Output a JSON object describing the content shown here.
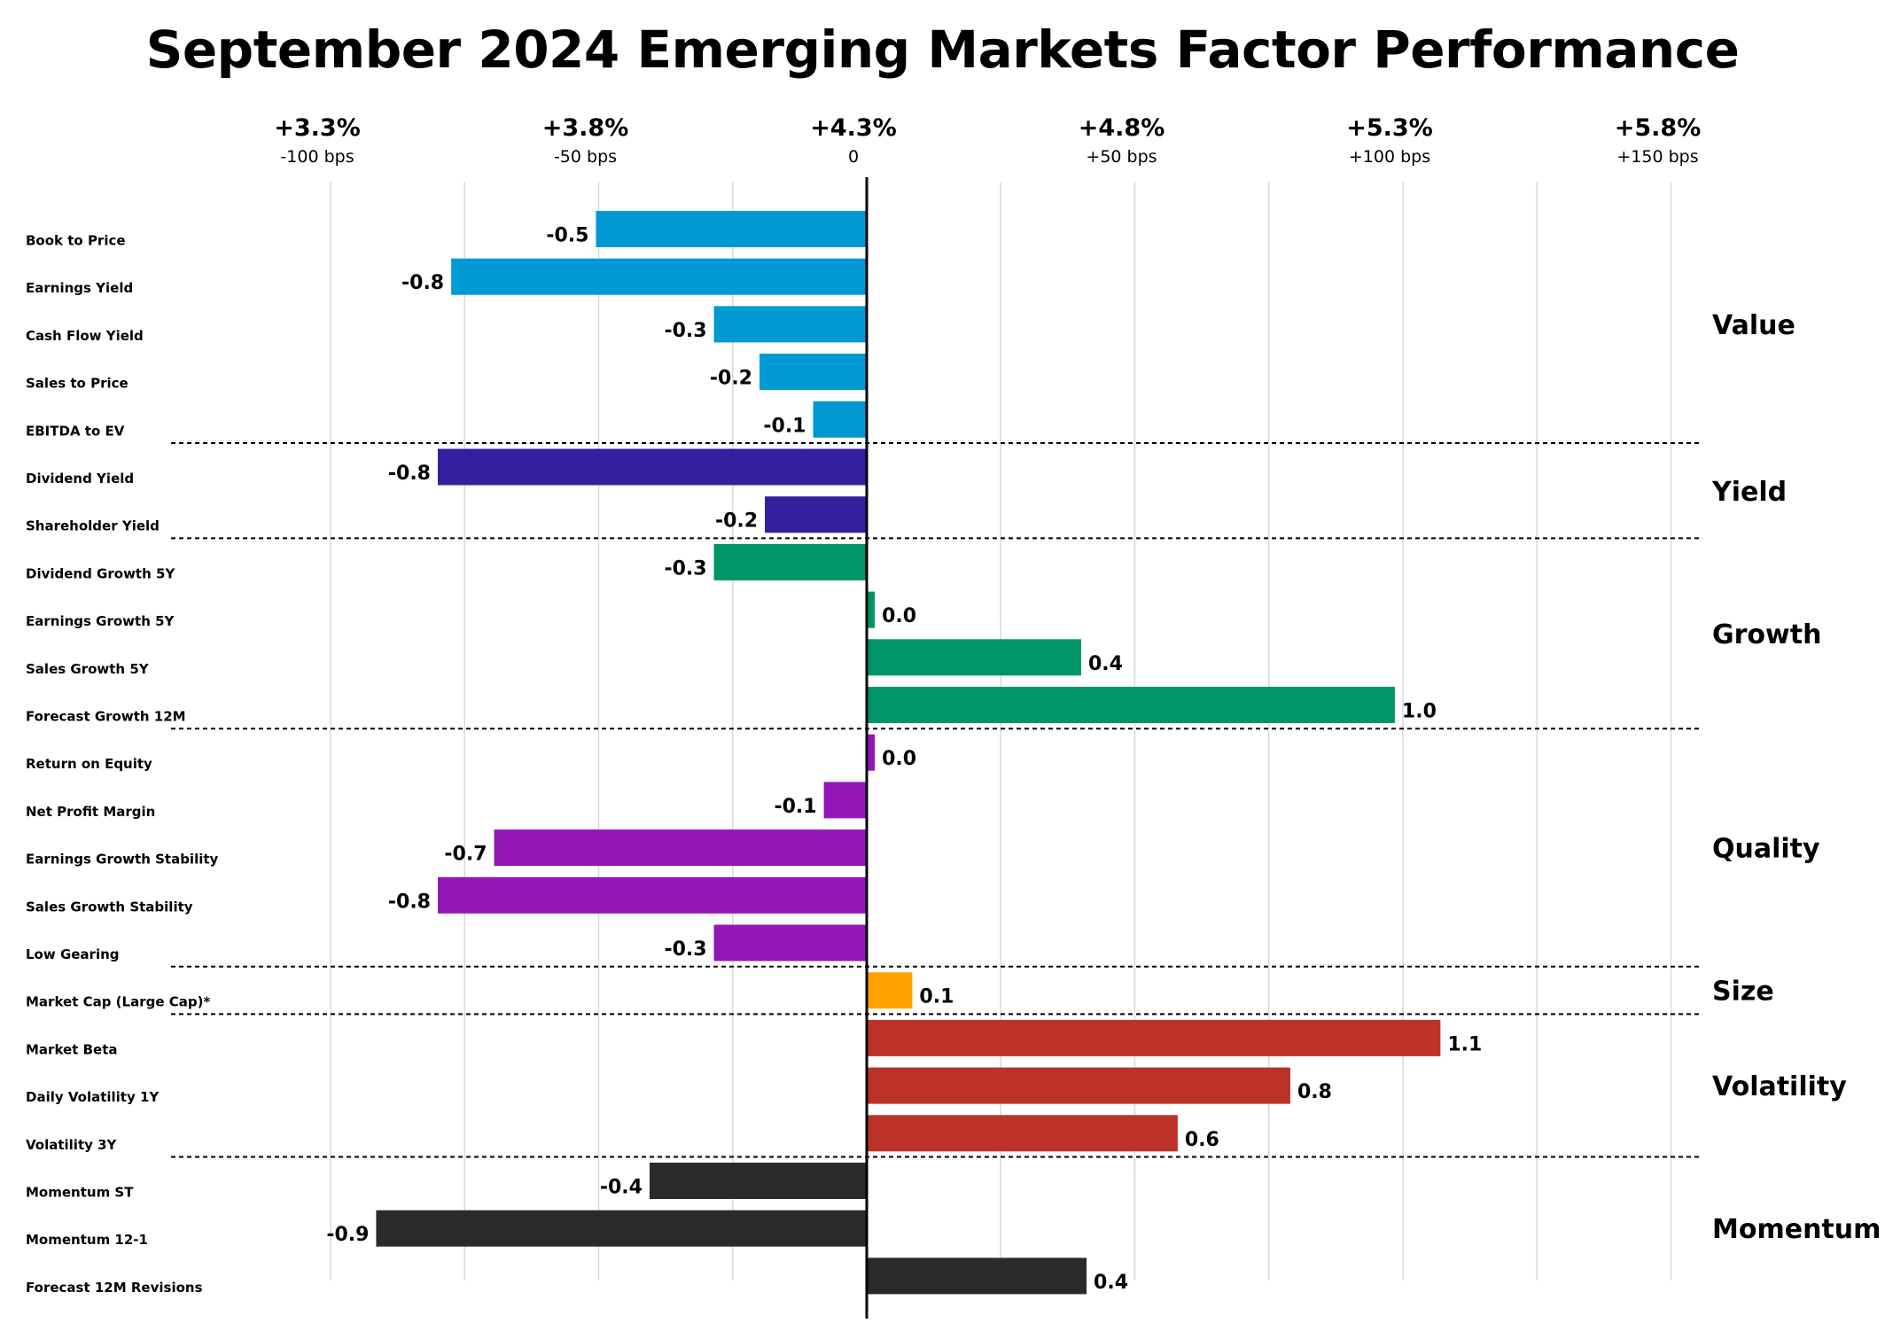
{
  "chart_data": {
    "type": "bar",
    "orientation": "horizontal",
    "title": "September 2024 Emerging Markets Factor Performance",
    "units": "bps x 100 (relative)",
    "xlim": [
      -1.25,
      1.5
    ],
    "ticks": [
      {
        "value": -1.0,
        "main": "+3.3%",
        "sub": "-100 bps"
      },
      {
        "value": -0.5,
        "main": "+3.8%",
        "sub": "-50 bps"
      },
      {
        "value": 0.0,
        "main": "+4.3%",
        "sub": "0"
      },
      {
        "value": 0.5,
        "main": "+4.8%",
        "sub": "+50 bps"
      },
      {
        "value": 1.0,
        "main": "+5.3%",
        "sub": "+100 bps"
      },
      {
        "value": 1.5,
        "main": "+5.8%",
        "sub": "+150 bps"
      }
    ],
    "grid": true,
    "groups": [
      {
        "name": "Value",
        "color": "#0099d4",
        "items": [
          {
            "label": "Book to Price",
            "value": -0.5,
            "display": "-0.5",
            "bar": -0.505
          },
          {
            "label": "Earnings Yield",
            "value": -0.8,
            "display": "-0.8",
            "bar": -0.775
          },
          {
            "label": "Cash Flow Yield",
            "value": -0.3,
            "display": "-0.3",
            "bar": -0.285
          },
          {
            "label": "Sales to Price",
            "value": -0.2,
            "display": "-0.2",
            "bar": -0.2
          },
          {
            "label": "EBITDA to EV",
            "value": -0.1,
            "display": "-0.1",
            "bar": -0.1
          }
        ]
      },
      {
        "name": "Yield",
        "color": "#33209f",
        "items": [
          {
            "label": "Dividend Yield",
            "value": -0.8,
            "display": "-0.8",
            "bar": -0.8
          },
          {
            "label": "Shareholder Yield",
            "value": -0.2,
            "display": "-0.2",
            "bar": -0.19
          }
        ]
      },
      {
        "name": "Growth",
        "color": "#009467",
        "items": [
          {
            "label": "Dividend Growth 5Y",
            "value": -0.3,
            "display": "-0.3",
            "bar": -0.285
          },
          {
            "label": "Earnings Growth 5Y",
            "value": 0.0,
            "display": "0.0",
            "bar": 0.015
          },
          {
            "label": "Sales Growth 5Y",
            "value": 0.4,
            "display": "0.4",
            "bar": 0.4
          },
          {
            "label": "Forecast Growth 12M",
            "value": 1.0,
            "display": "1.0",
            "bar": 0.985
          }
        ]
      },
      {
        "name": "Quality",
        "color": "#9316b6",
        "items": [
          {
            "label": "Return on Equity",
            "value": 0.0,
            "display": "0.0",
            "bar": 0.015
          },
          {
            "label": "Net Profit Margin",
            "value": -0.1,
            "display": "-0.1",
            "bar": -0.08
          },
          {
            "label": "Earnings Growth Stability",
            "value": -0.7,
            "display": "-0.7",
            "bar": -0.695
          },
          {
            "label": "Sales Growth Stability",
            "value": -0.8,
            "display": "-0.8",
            "bar": -0.8
          },
          {
            "label": "Low Gearing",
            "value": -0.3,
            "display": "-0.3",
            "bar": -0.285
          }
        ]
      },
      {
        "name": "Size",
        "color": "#ffa000",
        "items": [
          {
            "label": "Market Cap (Large Cap)*",
            "value": 0.1,
            "display": "0.1",
            "bar": 0.085
          }
        ]
      },
      {
        "name": "Volatility",
        "color": "#bc3228",
        "items": [
          {
            "label": "Market Beta",
            "value": 1.1,
            "display": "1.1",
            "bar": 1.07
          },
          {
            "label": "Daily Volatility 1Y",
            "value": 0.8,
            "display": "0.8",
            "bar": 0.79
          },
          {
            "label": "Volatility 3Y",
            "value": 0.6,
            "display": "0.6",
            "bar": 0.58
          }
        ]
      },
      {
        "name": "Momentum",
        "color": "#2b2b2b",
        "items": [
          {
            "label": "Momentum ST",
            "value": -0.4,
            "display": "-0.4",
            "bar": -0.405
          },
          {
            "label": "Momentum 12-1",
            "value": -0.9,
            "display": "-0.9",
            "bar": -0.915
          },
          {
            "label": "Forecast 12M Revisions",
            "value": 0.4,
            "display": "0.4",
            "bar": 0.41
          }
        ]
      }
    ]
  }
}
